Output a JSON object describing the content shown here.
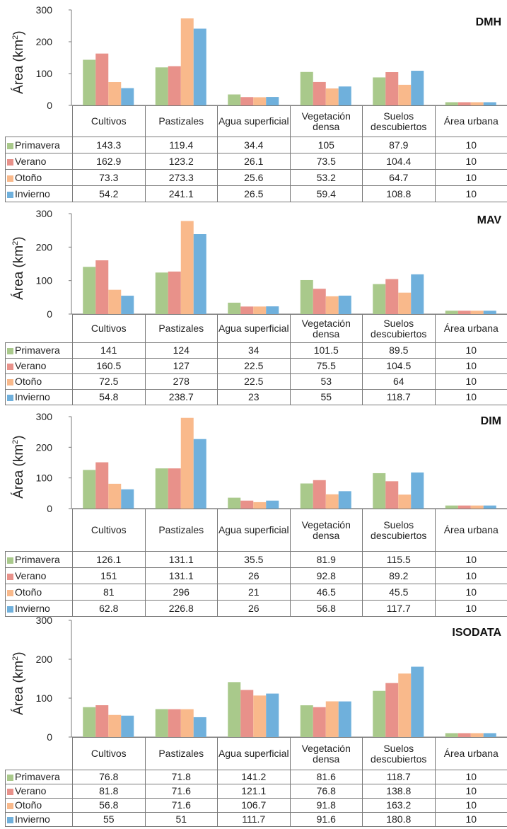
{
  "colors": {
    "Primavera": "#a9c98b",
    "Verano": "#e8918a",
    "Otoño": "#f9b98b",
    "Invierno": "#6fb0dc"
  },
  "chart_data": [
    {
      "type": "bar",
      "title": "DMH",
      "ylabel": "Área (km²)",
      "ylabel_main": "Área (km",
      "ylabel_sup": "2",
      "ylabel_end": ")",
      "ylim": [
        0,
        300
      ],
      "yticks": [
        "0",
        "100",
        "200",
        "300"
      ],
      "categories": [
        "Cultivos",
        "Pastizales",
        "Agua superficial",
        "Vegetación densa",
        "Suelos descubiertos",
        "Área urbana"
      ],
      "series": [
        {
          "name": "Primavera",
          "values": [
            143.3,
            119.4,
            34.4,
            105,
            87.9,
            10
          ],
          "labels": [
            "143.3",
            "119.4",
            "34.4",
            "105",
            "87.9",
            "10"
          ]
        },
        {
          "name": "Verano",
          "values": [
            162.9,
            123.2,
            26.1,
            73.5,
            104.4,
            10
          ],
          "labels": [
            "162.9",
            "123.2",
            "26.1",
            "73.5",
            "104.4",
            "10"
          ]
        },
        {
          "name": "Otoño",
          "values": [
            73.3,
            273.3,
            25.6,
            53.2,
            64.7,
            10
          ],
          "labels": [
            "73.3",
            "273.3",
            "25.6",
            "53.2",
            "64.7",
            "10"
          ]
        },
        {
          "name": "Invierno",
          "values": [
            54.2,
            241.1,
            26.5,
            59.4,
            108.8,
            10
          ],
          "labels": [
            "54.2",
            "241.1",
            "26.5",
            "59.4",
            "108.8",
            "10"
          ]
        }
      ]
    },
    {
      "type": "bar",
      "title": "MAV",
      "ylabel": "Área (km²)",
      "ylabel_main": "Área (km",
      "ylabel_sup": "2",
      "ylabel_end": ")",
      "ylim": [
        0,
        300
      ],
      "yticks": [
        "0",
        "100",
        "200",
        "300"
      ],
      "categories": [
        "Cultivos",
        "Pastizales",
        "Agua superficial",
        "Vegetación densa",
        "Suelos descubiertos",
        "Área urbana"
      ],
      "series": [
        {
          "name": "Primavera",
          "values": [
            141,
            124,
            34,
            101.5,
            89.5,
            10
          ],
          "labels": [
            "141",
            "124",
            "34",
            "101.5",
            "89.5",
            "10"
          ]
        },
        {
          "name": "Verano",
          "values": [
            160.5,
            127,
            22.5,
            75.5,
            104.5,
            10
          ],
          "labels": [
            "160.5",
            "127",
            "22.5",
            "75.5",
            "104.5",
            "10"
          ]
        },
        {
          "name": "Otoño",
          "values": [
            72.5,
            278,
            22.5,
            53,
            64,
            10
          ],
          "labels": [
            "72.5",
            "278",
            "22.5",
            "53",
            "64",
            "10"
          ]
        },
        {
          "name": "Invierno",
          "values": [
            54.8,
            238.7,
            23,
            55,
            118.7,
            10
          ],
          "labels": [
            "54.8",
            "238.7",
            "23",
            "55",
            "118.7",
            "10"
          ]
        }
      ]
    },
    {
      "type": "bar",
      "title": "DIM",
      "ylabel": "Área (km²)",
      "ylabel_main": "Área (km",
      "ylabel_sup": "2",
      "ylabel_end": ")",
      "ylim": [
        0,
        300
      ],
      "yticks": [
        "0",
        "100",
        "200",
        "300"
      ],
      "categories": [
        "Cultivos",
        "Pastizales",
        "Agua superficial",
        "Vegetación densa",
        "Suelos descubiertos",
        "Área urbana"
      ],
      "series": [
        {
          "name": "Primavera",
          "values": [
            126.1,
            131.1,
            35.5,
            81.9,
            115.5,
            10
          ],
          "labels": [
            "126.1",
            "131.1",
            "35.5",
            "81.9",
            "115.5",
            "10"
          ]
        },
        {
          "name": "Verano",
          "values": [
            151,
            131.1,
            26,
            92.8,
            89.2,
            10
          ],
          "labels": [
            "151",
            "131.1",
            "26",
            "92.8",
            "89.2",
            "10"
          ]
        },
        {
          "name": "Otoño",
          "values": [
            81,
            296,
            21,
            46.5,
            45.5,
            10
          ],
          "labels": [
            "81",
            "296",
            "21",
            "46.5",
            "45.5",
            "10"
          ]
        },
        {
          "name": "Invierno",
          "values": [
            62.8,
            226.8,
            26,
            56.8,
            117.7,
            10
          ],
          "labels": [
            "62.8",
            "226.8",
            "26",
            "56.8",
            "117.7",
            "10"
          ]
        }
      ]
    },
    {
      "type": "bar",
      "title": "ISODATA",
      "ylabel": "Área (km²)",
      "ylabel_main": "Área (km",
      "ylabel_sup": "2",
      "ylabel_end": ")",
      "ylim": [
        0,
        300
      ],
      "yticks": [
        "0",
        "100",
        "200",
        "300"
      ],
      "categories": [
        "Cultivos",
        "Pastizales",
        "Agua superficial",
        "Vegetación densa",
        "Suelos descubiertos",
        "Área urbana"
      ],
      "series": [
        {
          "name": "Primavera",
          "values": [
            76.8,
            71.8,
            141.2,
            81.6,
            118.7,
            10
          ],
          "labels": [
            "76.8",
            "71.8",
            "141.2",
            "81.6",
            "118.7",
            "10"
          ]
        },
        {
          "name": "Verano",
          "values": [
            81.8,
            71.6,
            121.1,
            76.8,
            138.8,
            10
          ],
          "labels": [
            "81.8",
            "71.6",
            "121.1",
            "76.8",
            "138.8",
            "10"
          ]
        },
        {
          "name": "Otoño",
          "values": [
            56.8,
            71.6,
            106.7,
            91.8,
            163.2,
            10
          ],
          "labels": [
            "56.8",
            "71.6",
            "106.7",
            "91.8",
            "163.2",
            "10"
          ]
        },
        {
          "name": "Invierno",
          "values": [
            55,
            51,
            111.7,
            91.6,
            180.8,
            10
          ],
          "labels": [
            "55",
            "51",
            "111.7",
            "91.6",
            "180.8",
            "10"
          ]
        }
      ]
    }
  ]
}
